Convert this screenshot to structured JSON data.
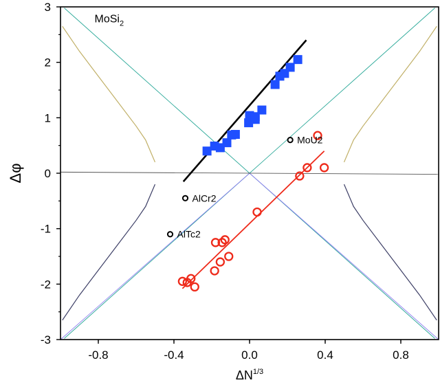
{
  "chart_data": {
    "type": "scatter",
    "xlabel": "ΔN",
    "xlabel_sup": "1/3",
    "ylabel": "Δφ",
    "xlim": [
      -1.0,
      1.0
    ],
    "ylim": [
      -3,
      3
    ],
    "xticks": [
      -0.8,
      -0.4,
      0.0,
      0.4,
      0.8
    ],
    "xtick_labels": [
      "-0.8",
      "-0.4",
      "0.0",
      "0.4",
      "0.8"
    ],
    "yticks": [
      -3,
      -2,
      -1,
      0,
      1,
      2,
      3
    ],
    "ytick_labels": [
      "-3",
      "-2",
      "-1",
      "0",
      "1",
      "2",
      "3"
    ],
    "annotation": {
      "text": "MoSi",
      "subscript": "2",
      "x": -0.82,
      "y": 2.72
    },
    "series": [
      {
        "marker": "square",
        "color": "#1f4fff",
        "points": [
          [
            -0.225,
            0.4
          ],
          [
            -0.185,
            0.49
          ],
          [
            -0.155,
            0.46
          ],
          [
            -0.12,
            0.55
          ],
          [
            -0.095,
            0.69
          ],
          [
            -0.075,
            0.7
          ],
          [
            -0.005,
            0.91
          ],
          [
            0.0,
            1.04
          ],
          [
            0.03,
            0.97
          ],
          [
            0.03,
            1.02
          ],
          [
            0.065,
            1.14
          ],
          [
            0.135,
            1.6
          ],
          [
            0.16,
            1.75
          ],
          [
            0.185,
            1.8
          ],
          [
            0.215,
            1.91
          ],
          [
            0.255,
            2.05
          ]
        ]
      },
      {
        "marker": "circle",
        "color": "#ee2a1a",
        "points": [
          [
            -0.355,
            -1.95
          ],
          [
            -0.33,
            -1.97
          ],
          [
            -0.31,
            -1.9
          ],
          [
            -0.29,
            -2.05
          ],
          [
            -0.185,
            -1.76
          ],
          [
            -0.18,
            -1.25
          ],
          [
            -0.155,
            -1.6
          ],
          [
            -0.145,
            -1.25
          ],
          [
            -0.13,
            -1.2
          ],
          [
            -0.11,
            -1.5
          ],
          [
            0.04,
            -0.7
          ],
          [
            0.265,
            -0.05
          ],
          [
            0.305,
            0.1
          ],
          [
            0.36,
            0.68
          ],
          [
            0.395,
            0.1
          ]
        ]
      }
    ],
    "labeled_points": [
      {
        "label": "MoU2",
        "x": 0.215,
        "y": 0.6
      },
      {
        "label": "AlCr2",
        "x": -0.34,
        "y": -0.45
      },
      {
        "label": "AlTc2",
        "x": -0.42,
        "y": -1.1
      }
    ],
    "fit_lines": [
      {
        "color": "#000000",
        "from": [
          -0.35,
          -0.15
        ],
        "to": [
          0.3,
          2.4
        ]
      },
      {
        "color": "#ee2a1a",
        "from": [
          -0.355,
          -2.08
        ],
        "to": [
          0.395,
          0.4
        ]
      }
    ],
    "guide_lines": [
      {
        "color": "#2aa898",
        "points": [
          [
            -0.98,
            2.98
          ],
          [
            0.98,
            -2.98
          ]
        ]
      },
      {
        "color": "#2aa898",
        "points": [
          [
            -0.98,
            -2.98
          ],
          [
            0.98,
            2.98
          ]
        ]
      },
      {
        "color": "#8f7ff0",
        "points": [
          [
            -1.0,
            -3.0
          ],
          [
            0.0,
            0.0
          ],
          [
            1.0,
            -3.0
          ]
        ]
      },
      {
        "color": "#555555",
        "points": [
          [
            -1.0,
            0.02
          ],
          [
            1.0,
            -0.02
          ]
        ]
      }
    ],
    "guide_curves": [
      {
        "color": "#c1b068",
        "points": [
          [
            -0.99,
            2.65
          ],
          [
            -0.9,
            2.2
          ],
          [
            -0.8,
            1.75
          ],
          [
            -0.7,
            1.3
          ],
          [
            -0.6,
            0.85
          ],
          [
            -0.55,
            0.6
          ],
          [
            -0.5,
            0.2
          ]
        ]
      },
      {
        "color": "#c1b068",
        "points": [
          [
            0.5,
            0.2
          ],
          [
            0.55,
            0.6
          ],
          [
            0.6,
            0.85
          ],
          [
            0.7,
            1.3
          ],
          [
            0.8,
            1.75
          ],
          [
            0.9,
            2.2
          ],
          [
            0.99,
            2.65
          ]
        ]
      },
      {
        "color": "#3d3f66",
        "points": [
          [
            -0.99,
            -2.65
          ],
          [
            -0.9,
            -2.2
          ],
          [
            -0.8,
            -1.75
          ],
          [
            -0.7,
            -1.3
          ],
          [
            -0.6,
            -0.85
          ],
          [
            -0.55,
            -0.6
          ],
          [
            -0.5,
            -0.2
          ]
        ]
      },
      {
        "color": "#3d3f66",
        "points": [
          [
            0.5,
            -0.2
          ],
          [
            0.55,
            -0.6
          ],
          [
            0.6,
            -0.85
          ],
          [
            0.7,
            -1.3
          ],
          [
            0.8,
            -1.75
          ],
          [
            0.9,
            -2.2
          ],
          [
            0.99,
            -2.65
          ]
        ]
      }
    ]
  }
}
